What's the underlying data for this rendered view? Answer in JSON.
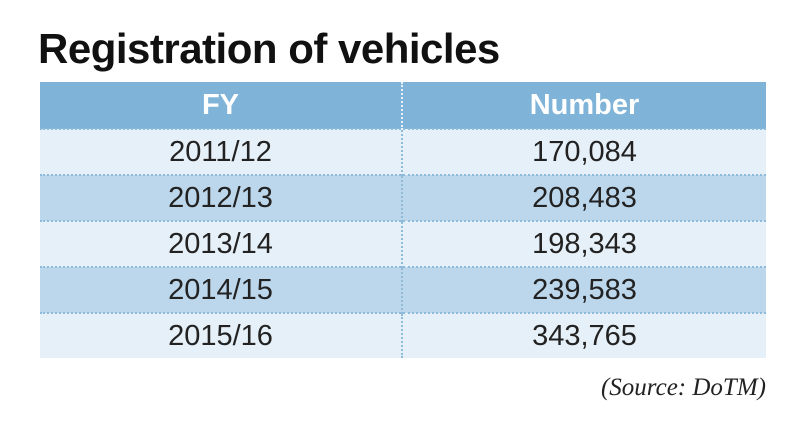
{
  "title": "Registration of vehicles",
  "table": {
    "headers": [
      "FY",
      "Number"
    ],
    "rows": [
      [
        "2011/12",
        "170,084"
      ],
      [
        "2012/13",
        "208,483"
      ],
      [
        "2013/14",
        "198,343"
      ],
      [
        "2014/15",
        "239,583"
      ],
      [
        "2015/16",
        "343,765"
      ]
    ]
  },
  "source": "(Source: DoTM)",
  "colors": {
    "header_background": "#7fb4d8",
    "row_light": "#e6f0f8",
    "row_dark": "#bcd7ec",
    "divider": "#8fbbdb"
  }
}
